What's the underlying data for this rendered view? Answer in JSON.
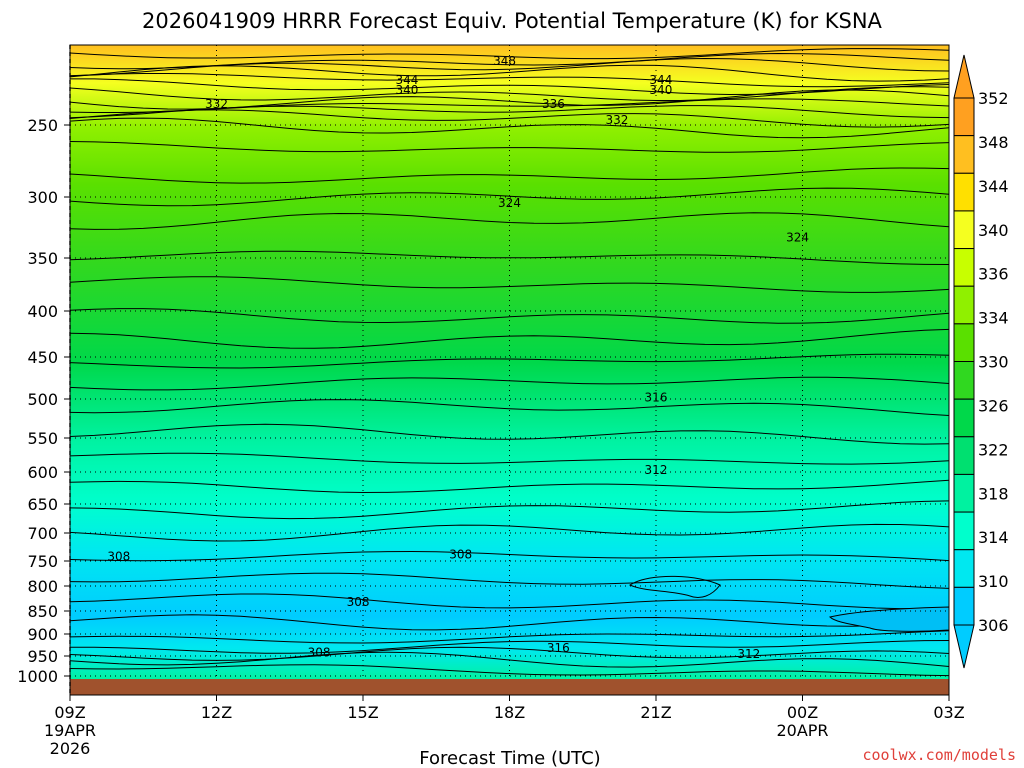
{
  "title": "2026041909 HRRR Forecast Equiv. Potential Temperature (K) for KSNA",
  "credit": "coolwx.com/models",
  "colors": {
    "fills": [
      "#00ccff",
      "#00e8f0",
      "#00ffcc",
      "#00f2a0",
      "#00e070",
      "#00d84a",
      "#30d820",
      "#5ae000",
      "#90f000",
      "#c8ff00",
      "#f5ff20",
      "#ffe000",
      "#ffbf20",
      "#ffa020"
    ],
    "ground": "#a0522d"
  },
  "chart_data": {
    "type": "contour",
    "xlabel": "Forecast Time (UTC)",
    "y_ticks": [
      "250",
      "300",
      "350",
      "400",
      "450",
      "500",
      "550",
      "600",
      "650",
      "700",
      "750",
      "800",
      "850",
      "900",
      "950",
      "1000"
    ],
    "y_values": [
      250,
      300,
      350,
      400,
      450,
      500,
      550,
      600,
      650,
      700,
      750,
      800,
      850,
      900,
      950,
      1000
    ],
    "x_ticks": [
      {
        "hour": 0,
        "line1": "09Z",
        "line2": "19APR",
        "line3": "2026"
      },
      {
        "hour": 3,
        "line1": "12Z",
        "line2": "",
        "line3": ""
      },
      {
        "hour": 6,
        "line1": "15Z",
        "line2": "",
        "line3": ""
      },
      {
        "hour": 9,
        "line1": "18Z",
        "line2": "",
        "line3": ""
      },
      {
        "hour": 12,
        "line1": "21Z",
        "line2": "",
        "line3": ""
      },
      {
        "hour": 15,
        "line1": "00Z",
        "line2": "20APR",
        "line3": ""
      },
      {
        "hour": 18,
        "line1": "03Z",
        "line2": "",
        "line3": ""
      }
    ],
    "colorbar_labels": [
      "352",
      "348",
      "344",
      "340",
      "336",
      "334",
      "330",
      "326",
      "322",
      "318",
      "314",
      "310",
      "306"
    ],
    "contour_labels": [
      {
        "text": "348",
        "hour": 8.9,
        "p": 210
      },
      {
        "text": "344",
        "hour": 6.9,
        "p": 222
      },
      {
        "text": "340",
        "hour": 6.9,
        "p": 228
      },
      {
        "text": "344",
        "hour": 12.1,
        "p": 222
      },
      {
        "text": "340",
        "hour": 12.1,
        "p": 228
      },
      {
        "text": "332",
        "hour": 3.0,
        "p": 237
      },
      {
        "text": "336",
        "hour": 9.9,
        "p": 237
      },
      {
        "text": "332",
        "hour": 11.2,
        "p": 247
      },
      {
        "text": "324",
        "hour": 9.0,
        "p": 305
      },
      {
        "text": "324",
        "hour": 14.9,
        "p": 333
      },
      {
        "text": "316",
        "hour": 12.0,
        "p": 498
      },
      {
        "text": "312",
        "hour": 12.0,
        "p": 597
      },
      {
        "text": "308",
        "hour": 1.0,
        "p": 742
      },
      {
        "text": "308",
        "hour": 8.0,
        "p": 738
      },
      {
        "text": "308",
        "hour": 5.9,
        "p": 832
      },
      {
        "text": "308",
        "hour": 5.1,
        "p": 942
      },
      {
        "text": "316",
        "hour": 10.0,
        "p": 932
      },
      {
        "text": "312",
        "hour": 13.9,
        "p": 946
      }
    ]
  }
}
